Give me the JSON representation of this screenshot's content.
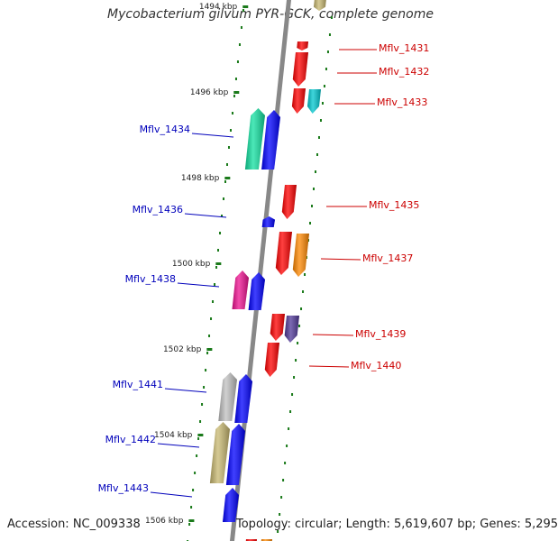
{
  "title": "Mycobacterium gilvum PYR-GCK, complete genome",
  "footer": {
    "accession": "Accession: NC_009338",
    "summary": "Topology: circular; Length: 5,619,607 bp; Genes: 5,295"
  },
  "ticks": [
    {
      "label": "1494 kbp"
    },
    {
      "label": "1496 kbp"
    },
    {
      "label": "1498 kbp"
    },
    {
      "label": "1500 kbp"
    },
    {
      "label": "1502 kbp"
    },
    {
      "label": "1504 kbp"
    },
    {
      "label": "1506 kbp"
    }
  ],
  "genes_plus": [
    {
      "label": "Mflv_1431"
    },
    {
      "label": "Mflv_1432"
    },
    {
      "label": "Mflv_1433"
    },
    {
      "label": "Mflv_1435"
    },
    {
      "label": "Mflv_1437"
    },
    {
      "label": "Mflv_1439"
    },
    {
      "label": "Mflv_1440"
    }
  ],
  "genes_minus": [
    {
      "label": "Mflv_1434"
    },
    {
      "label": "Mflv_1436"
    },
    {
      "label": "Mflv_1438"
    },
    {
      "label": "Mflv_1441"
    },
    {
      "label": "Mflv_1442"
    },
    {
      "label": "Mflv_1443"
    }
  ],
  "colors": {
    "plus_label": "#cc0000",
    "minus_label": "#0000bb",
    "backbone": "#888888",
    "tick": "#1a7a1a",
    "red": "#ff0000",
    "blue": "#0000ff",
    "cyan": "#00c8d0",
    "orange": "#ff8800",
    "green": "#10e0a0",
    "magenta": "#ee1090",
    "purple": "#503898",
    "gray": "#c0c0c0",
    "khaki": "#c8b870"
  }
}
